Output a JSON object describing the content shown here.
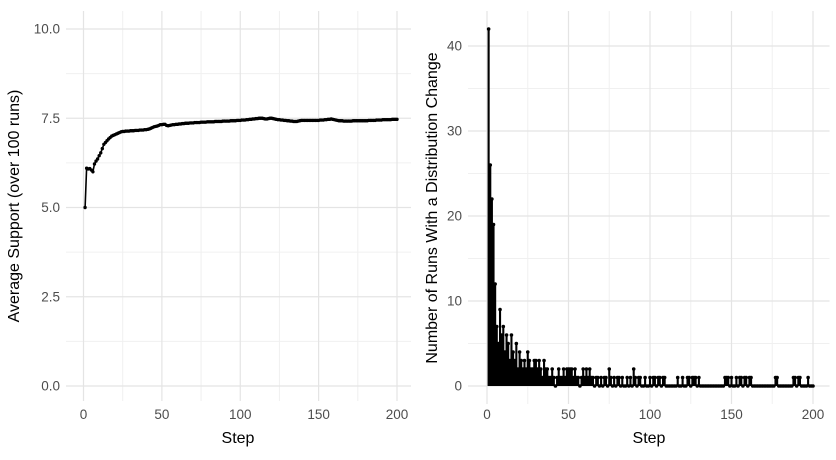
{
  "figure": {
    "background_color": "#ffffff",
    "grid_major_color": "#e4e4e4",
    "grid_minor_color": "#f0f0f0",
    "data_color": "#000000",
    "tick_label_color": "#4d4d4d",
    "axis_title_color": "#000000"
  },
  "chart_data": [
    {
      "type": "line",
      "title": "",
      "xlabel": "Step",
      "ylabel": "Average Support (over 100 runs)",
      "xlim": [
        0,
        200
      ],
      "ylim": [
        0,
        10
      ],
      "grid": "on",
      "legend": "none",
      "marker": "point",
      "xticks": [
        0,
        50,
        100,
        150,
        200
      ],
      "xtick_labels": [
        "0",
        "50",
        "100",
        "150",
        "200"
      ],
      "yticks": [
        0,
        2.5,
        5,
        7.5,
        10
      ],
      "ytick_labels": [
        "0.0",
        "2.5",
        "5.0",
        "7.5",
        "10.0"
      ],
      "x_minor": [
        25,
        75,
        125,
        175
      ],
      "y_minor": [
        1.25,
        3.75,
        6.25,
        8.75
      ],
      "x_start": 1,
      "y": [
        5.0,
        6.1,
        6.08,
        6.09,
        6.05,
        6.0,
        6.22,
        6.3,
        6.36,
        6.45,
        6.53,
        6.65,
        6.77,
        6.82,
        6.87,
        6.92,
        6.96,
        7.0,
        7.02,
        7.04,
        7.06,
        7.08,
        7.1,
        7.12,
        7.13,
        7.13,
        7.14,
        7.14,
        7.14,
        7.15,
        7.15,
        7.15,
        7.16,
        7.16,
        7.16,
        7.17,
        7.17,
        7.17,
        7.18,
        7.18,
        7.19,
        7.2,
        7.22,
        7.24,
        7.26,
        7.27,
        7.28,
        7.3,
        7.32,
        7.32,
        7.33,
        7.33,
        7.3,
        7.29,
        7.3,
        7.31,
        7.32,
        7.32,
        7.33,
        7.33,
        7.34,
        7.34,
        7.35,
        7.35,
        7.36,
        7.36,
        7.36,
        7.37,
        7.37,
        7.37,
        7.38,
        7.38,
        7.38,
        7.38,
        7.39,
        7.39,
        7.39,
        7.39,
        7.4,
        7.4,
        7.4,
        7.4,
        7.4,
        7.41,
        7.41,
        7.41,
        7.41,
        7.41,
        7.42,
        7.42,
        7.42,
        7.42,
        7.42,
        7.43,
        7.43,
        7.43,
        7.43,
        7.44,
        7.44,
        7.44,
        7.45,
        7.45,
        7.45,
        7.46,
        7.46,
        7.47,
        7.47,
        7.48,
        7.48,
        7.49,
        7.49,
        7.5,
        7.5,
        7.5,
        7.49,
        7.48,
        7.48,
        7.49,
        7.5,
        7.5,
        7.49,
        7.48,
        7.47,
        7.46,
        7.46,
        7.45,
        7.45,
        7.44,
        7.44,
        7.43,
        7.43,
        7.42,
        7.42,
        7.41,
        7.41,
        7.41,
        7.42,
        7.43,
        7.44,
        7.44,
        7.44,
        7.44,
        7.44,
        7.44,
        7.44,
        7.44,
        7.44,
        7.44,
        7.44,
        7.44,
        7.45,
        7.45,
        7.45,
        7.46,
        7.46,
        7.47,
        7.47,
        7.48,
        7.47,
        7.46,
        7.45,
        7.44,
        7.43,
        7.43,
        7.43,
        7.42,
        7.42,
        7.42,
        7.42,
        7.42,
        7.42,
        7.43,
        7.43,
        7.43,
        7.43,
        7.43,
        7.43,
        7.43,
        7.43,
        7.43,
        7.43,
        7.44,
        7.44,
        7.44,
        7.44,
        7.44,
        7.45,
        7.45,
        7.45,
        7.45,
        7.46,
        7.46,
        7.46,
        7.46,
        7.46,
        7.46,
        7.47,
        7.47,
        7.47,
        7.47
      ]
    },
    {
      "type": "bar",
      "style": "lollipop",
      "title": "",
      "xlabel": "Step",
      "ylabel": "Number of Runs With a Distribution Change",
      "xlim": [
        0,
        200
      ],
      "ylim": [
        0,
        42
      ],
      "grid": "on",
      "legend": "none",
      "marker": "point",
      "xticks": [
        0,
        50,
        100,
        150,
        200
      ],
      "xtick_labels": [
        "0",
        "50",
        "100",
        "150",
        "200"
      ],
      "yticks": [
        0,
        10,
        20,
        30,
        40
      ],
      "ytick_labels": [
        "0",
        "10",
        "20",
        "30",
        "40"
      ],
      "x_minor": [
        25,
        75,
        125,
        175
      ],
      "y_minor": [
        5,
        15,
        25,
        35
      ],
      "x_start": 1,
      "values": [
        42,
        26,
        22,
        19,
        12,
        7,
        5,
        9,
        6,
        7,
        4,
        6,
        5,
        3,
        6,
        4,
        3,
        5,
        2,
        4,
        3,
        2,
        3,
        2,
        4,
        3,
        2,
        2,
        3,
        3,
        2,
        3,
        2,
        1,
        3,
        2,
        2,
        1,
        1,
        2,
        1,
        0,
        1,
        2,
        1,
        1,
        2,
        1,
        2,
        2,
        2,
        2,
        1,
        2,
        1,
        1,
        0,
        1,
        2,
        1,
        2,
        1,
        2,
        1,
        1,
        0,
        1,
        1,
        0,
        1,
        0,
        1,
        1,
        0,
        2,
        1,
        0,
        1,
        0,
        1,
        1,
        0,
        1,
        0,
        0,
        1,
        0,
        1,
        0,
        2,
        1,
        0,
        1,
        1,
        0,
        0,
        1,
        0,
        0,
        1,
        0,
        1,
        1,
        0,
        1,
        1,
        0,
        1,
        1,
        0,
        0,
        0,
        0,
        0,
        0,
        0,
        1,
        0,
        0,
        1,
        0,
        0,
        1,
        1,
        0,
        1,
        1,
        1,
        0,
        1,
        0,
        0,
        0,
        0,
        0,
        0,
        0,
        0,
        0,
        0,
        0,
        0,
        0,
        0,
        0,
        1,
        1,
        1,
        0,
        1,
        0,
        0,
        1,
        0,
        1,
        1,
        0,
        1,
        1,
        0,
        1,
        1,
        0,
        0,
        0,
        0,
        0,
        0,
        0,
        0,
        0,
        0,
        0,
        0,
        0,
        0,
        1,
        1,
        0,
        0,
        0,
        0,
        0,
        0,
        0,
        0,
        0,
        1,
        1,
        0,
        1,
        1,
        0,
        0,
        0,
        0,
        1,
        0,
        0,
        0
      ]
    }
  ]
}
